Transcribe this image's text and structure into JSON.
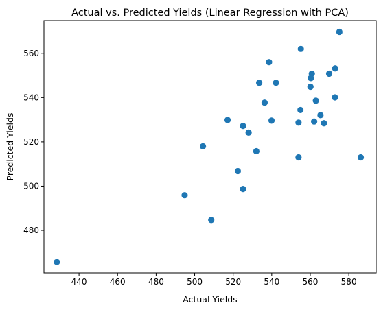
{
  "chart_data": {
    "type": "scatter",
    "title": "Actual vs. Predicted Yields (Linear Regression with PCA)",
    "xlabel": "Actual Yields",
    "ylabel": "Predicted Yields",
    "xlim": [
      421.8,
      594.2
    ],
    "ylim": [
      460.8,
      574.8
    ],
    "xticks": [
      440,
      460,
      480,
      500,
      520,
      540,
      560,
      580
    ],
    "yticks": [
      480,
      500,
      520,
      540,
      560
    ],
    "grid": false,
    "marker_color": "#1f77b4",
    "points": [
      {
        "x": 428.5,
        "y": 465.7
      },
      {
        "x": 494.8,
        "y": 495.9
      },
      {
        "x": 504.3,
        "y": 518.0
      },
      {
        "x": 508.6,
        "y": 484.7
      },
      {
        "x": 517.1,
        "y": 529.9
      },
      {
        "x": 522.4,
        "y": 506.8
      },
      {
        "x": 525.1,
        "y": 527.2
      },
      {
        "x": 525.1,
        "y": 498.7
      },
      {
        "x": 528.0,
        "y": 524.2
      },
      {
        "x": 532.0,
        "y": 515.8
      },
      {
        "x": 533.5,
        "y": 546.7
      },
      {
        "x": 536.3,
        "y": 537.7
      },
      {
        "x": 538.6,
        "y": 556.0
      },
      {
        "x": 539.9,
        "y": 529.6
      },
      {
        "x": 542.2,
        "y": 546.7
      },
      {
        "x": 553.9,
        "y": 528.7
      },
      {
        "x": 553.9,
        "y": 513.0
      },
      {
        "x": 554.9,
        "y": 534.4
      },
      {
        "x": 555.1,
        "y": 562.0
      },
      {
        "x": 560.1,
        "y": 544.9
      },
      {
        "x": 560.3,
        "y": 548.8
      },
      {
        "x": 560.8,
        "y": 550.8
      },
      {
        "x": 562.0,
        "y": 529.2
      },
      {
        "x": 562.9,
        "y": 538.6
      },
      {
        "x": 565.3,
        "y": 532.1
      },
      {
        "x": 567.1,
        "y": 528.4
      },
      {
        "x": 569.8,
        "y": 550.8
      },
      {
        "x": 572.8,
        "y": 540.1
      },
      {
        "x": 572.9,
        "y": 553.2
      },
      {
        "x": 575.1,
        "y": 569.7
      },
      {
        "x": 586.2,
        "y": 513.0
      }
    ]
  }
}
